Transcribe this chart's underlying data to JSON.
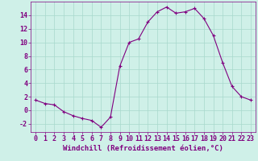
{
  "x": [
    0,
    1,
    2,
    3,
    4,
    5,
    6,
    7,
    8,
    9,
    10,
    11,
    12,
    13,
    14,
    15,
    16,
    17,
    18,
    19,
    20,
    21,
    22,
    23
  ],
  "y": [
    1.5,
    1.0,
    0.8,
    -0.2,
    -0.8,
    -1.2,
    -1.5,
    -2.5,
    -1.0,
    6.5,
    10.0,
    10.5,
    13.0,
    14.5,
    15.2,
    14.3,
    14.5,
    15.0,
    13.5,
    11.0,
    7.0,
    3.5,
    2.0,
    1.5
  ],
  "line_color": "#800080",
  "marker": "+",
  "marker_size": 3,
  "background_color": "#cff0e8",
  "grid_color": "#a8d8cc",
  "xlabel": "Windchill (Refroidissement éolien,°C)",
  "xlabel_fontsize": 6.5,
  "xlabel_color": "#800080",
  "tick_color": "#800080",
  "tick_fontsize": 6,
  "ylim": [
    -3.2,
    16
  ],
  "xlim": [
    -0.5,
    23.5
  ],
  "yticks": [
    -2,
    0,
    2,
    4,
    6,
    8,
    10,
    12,
    14
  ],
  "xticks": [
    0,
    1,
    2,
    3,
    4,
    5,
    6,
    7,
    8,
    9,
    10,
    11,
    12,
    13,
    14,
    15,
    16,
    17,
    18,
    19,
    20,
    21,
    22,
    23
  ]
}
